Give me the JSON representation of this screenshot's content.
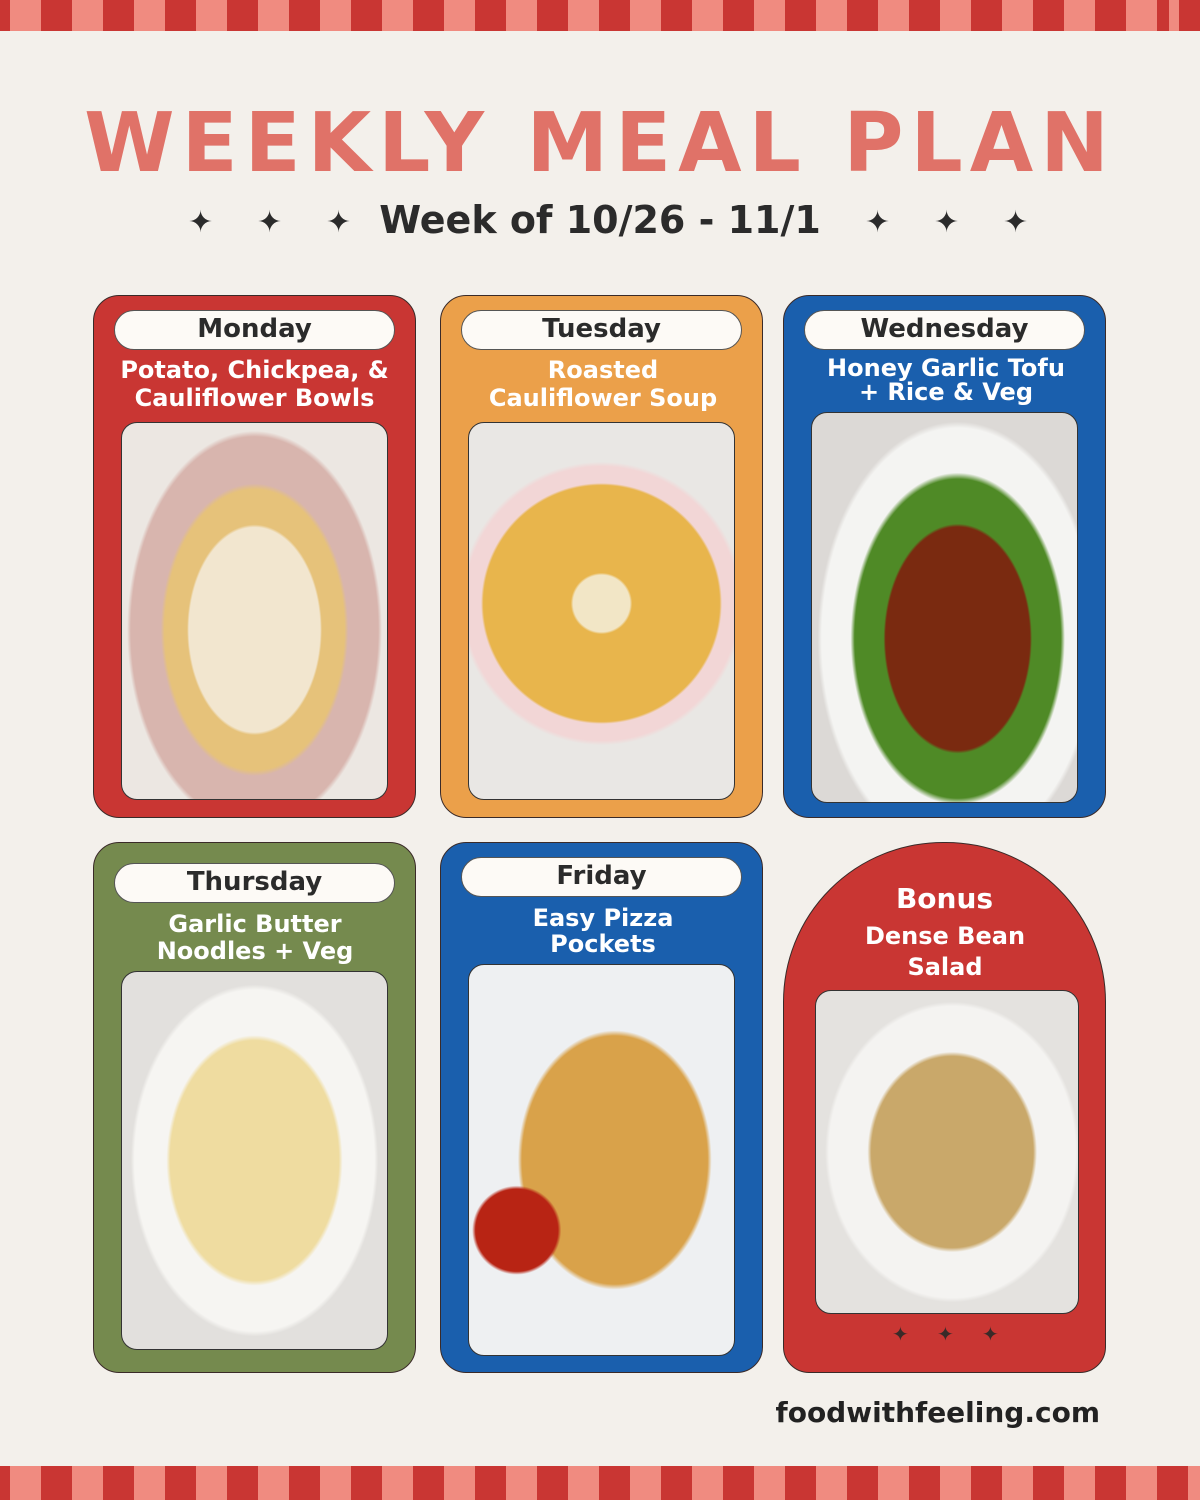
{
  "title": "WEEKLY MEAL PLAN",
  "subtitle": "Week of 10/26 - 11/1",
  "days": [
    {
      "day": "Monday",
      "meal": "Potato, Chickpea, & Cauliflower Bowls",
      "color": "#c93633"
    },
    {
      "day": "Tuesday",
      "meal": "Roasted Cauliflower Soup",
      "color": "#eba04a"
    },
    {
      "day": "Wednesday",
      "meal": "Honey Garlic Tofu + Rice & Veg",
      "color": "#1a5fad"
    },
    {
      "day": "Thursday",
      "meal": "Garlic Butter Noodles + Veg",
      "color": "#758a4e"
    },
    {
      "day": "Friday",
      "meal": "Easy Pizza Pockets",
      "color": "#1a5fad"
    }
  ],
  "bonus": {
    "label": "Bonus",
    "meal": "Dense Bean Salad",
    "color": "#c93633"
  },
  "website": "foodwithfeeling.com"
}
